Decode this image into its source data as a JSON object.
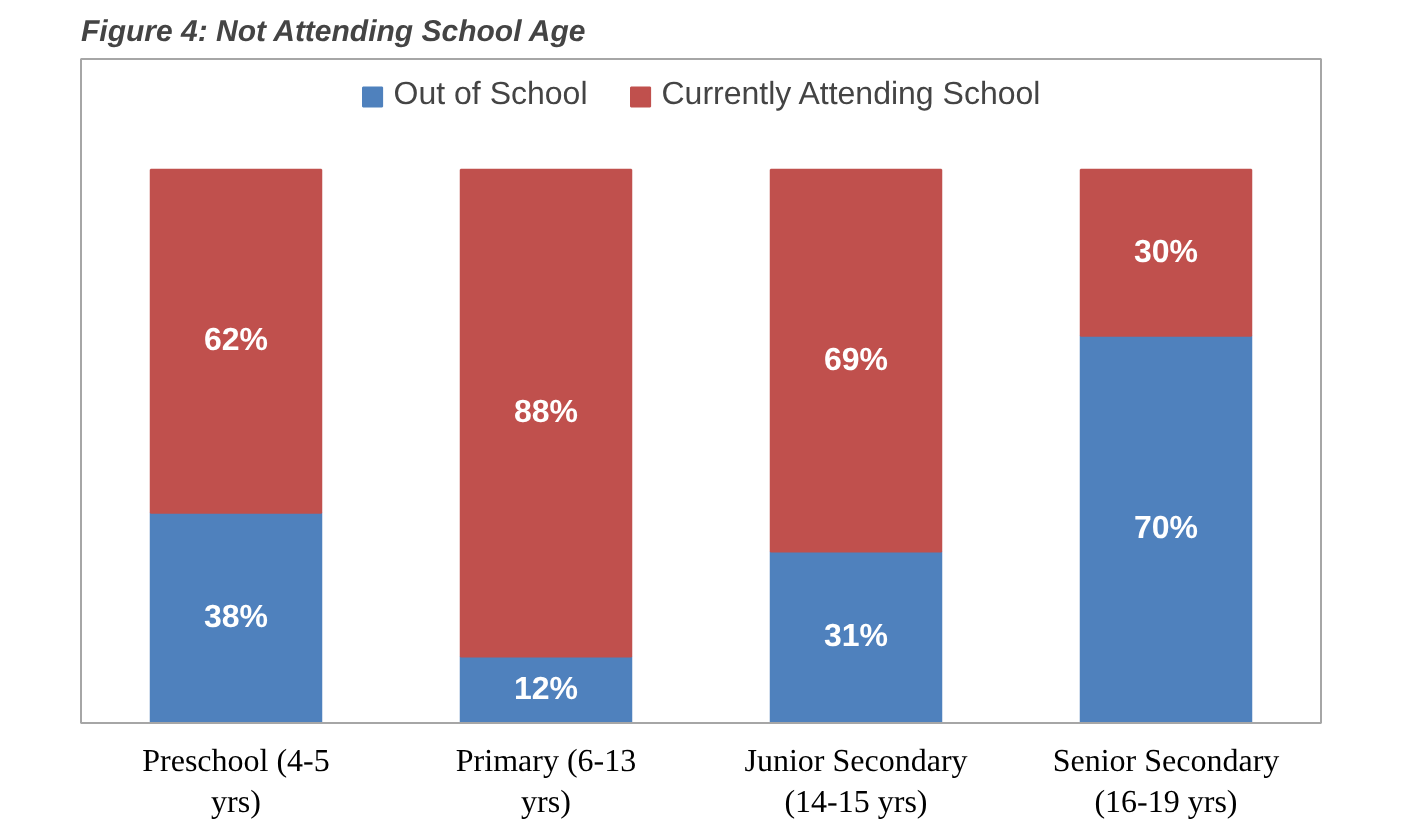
{
  "chart_data": {
    "type": "bar",
    "title": "Figure 4: Not Attending School Age",
    "stacked": true,
    "legend": "top",
    "grid": false,
    "categories": [
      "Preschool (4-5 yrs)",
      "Primary (6-13 yrs)",
      "Junior Secondary (14-15 yrs)",
      "Senior Secondary (16-19 yrs)"
    ],
    "series": [
      {
        "name": "Out of School",
        "color": "#4f81bd",
        "values": [
          38,
          12,
          31,
          70
        ],
        "value_labels": [
          "38%",
          "12%",
          "31%",
          "70%"
        ]
      },
      {
        "name": "Currently Attending School",
        "color": "#c0504d",
        "values": [
          62,
          88,
          69,
          30
        ],
        "value_labels": [
          "62%",
          "88%",
          "69%",
          "30%"
        ]
      }
    ]
  }
}
